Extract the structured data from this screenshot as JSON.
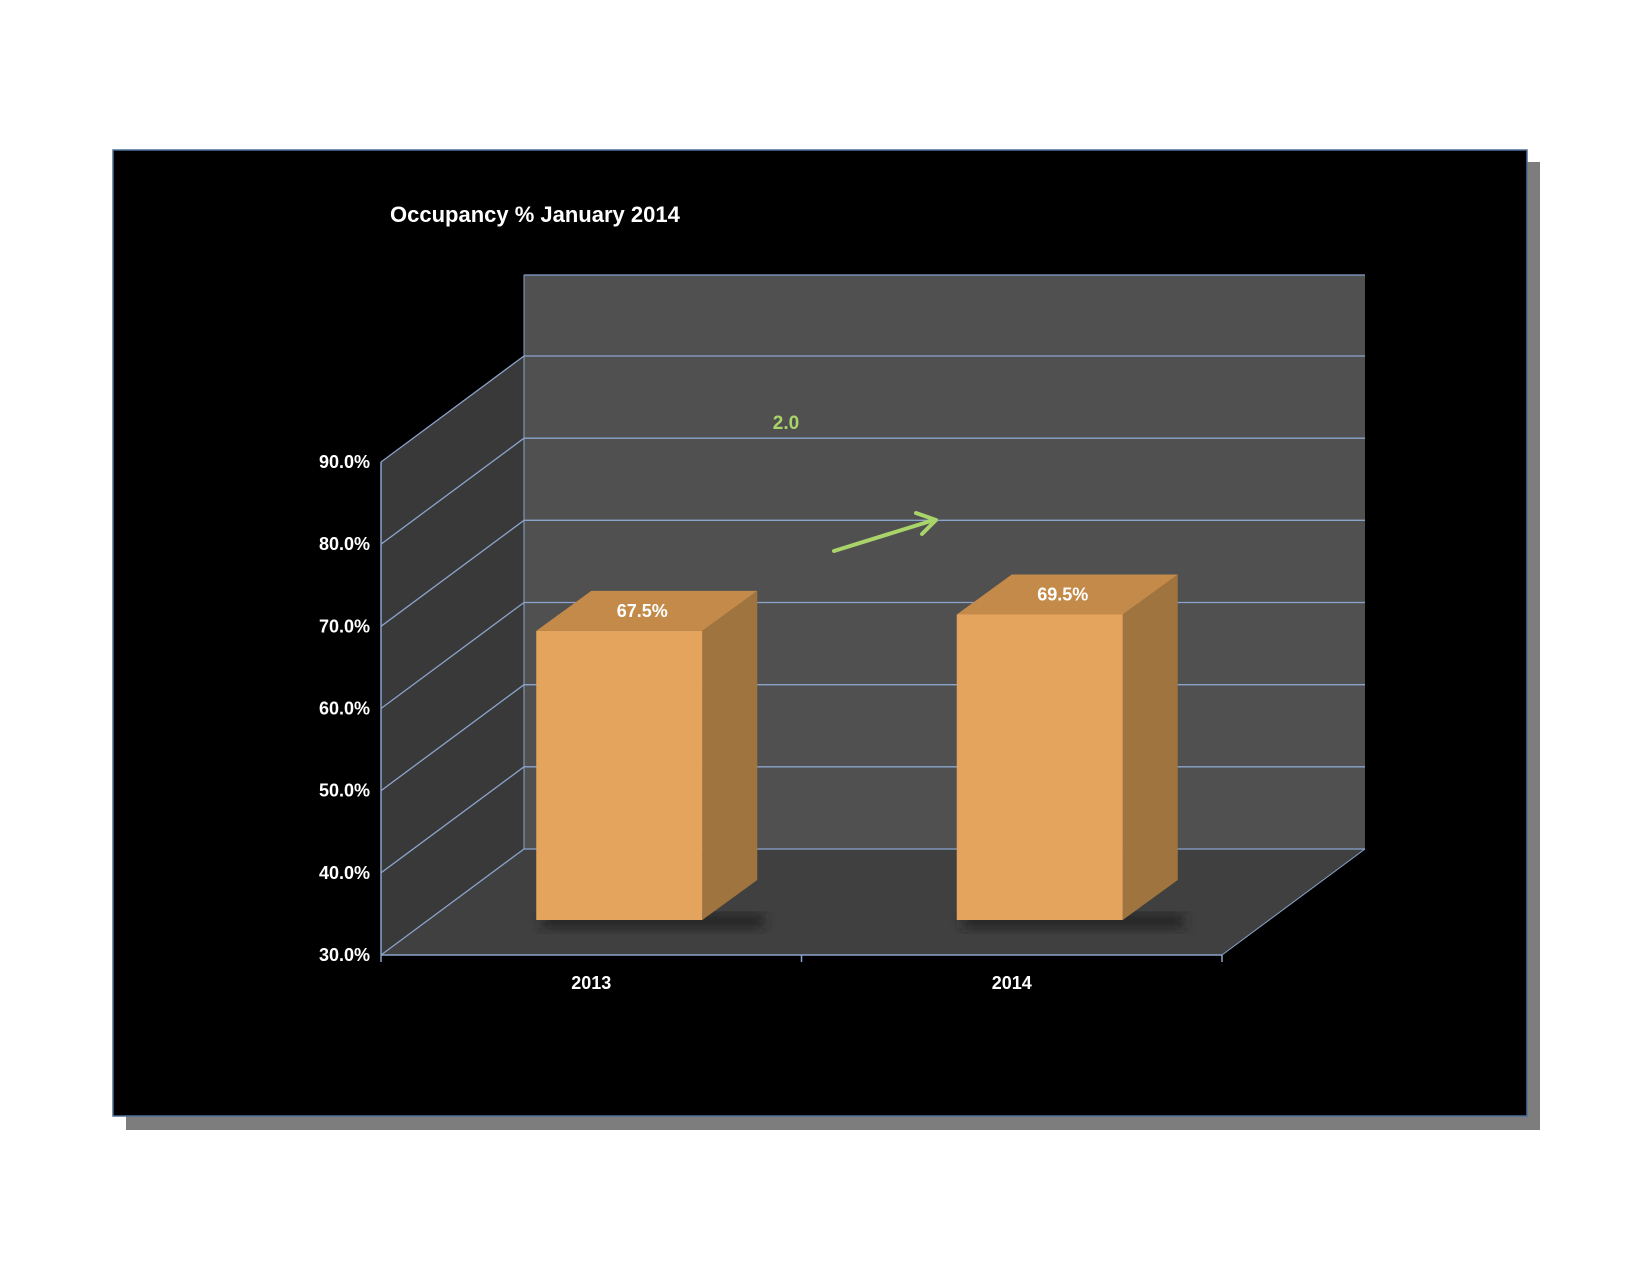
{
  "chart_data": {
    "type": "bar",
    "title": "Occupancy % January 2014",
    "categories": [
      "2013",
      "2014"
    ],
    "values": [
      67.5,
      69.5
    ],
    "value_labels": [
      "67.5%",
      "69.5%"
    ],
    "ylim": [
      30,
      90
    ],
    "yticks": [
      "30.0%",
      "40.0%",
      "50.0%",
      "60.0%",
      "70.0%",
      "80.0%",
      "90.0%"
    ],
    "xlabel": "",
    "ylabel": "",
    "grid": true,
    "legend": "none",
    "three_d": true,
    "annotation": {
      "text": "2.0",
      "arrow": "up-right"
    },
    "colors": {
      "background": "#000000",
      "wall": "#505050",
      "side_wall": "#393939",
      "floor": "#404040",
      "gridline": "#8aa4cc",
      "bar_front": "#e4a45e",
      "bar_side": "#a0743e",
      "bar_top": "#c48a4a",
      "annotation": "#a9d46a",
      "frame_shadow": "#8a8a8a"
    }
  }
}
